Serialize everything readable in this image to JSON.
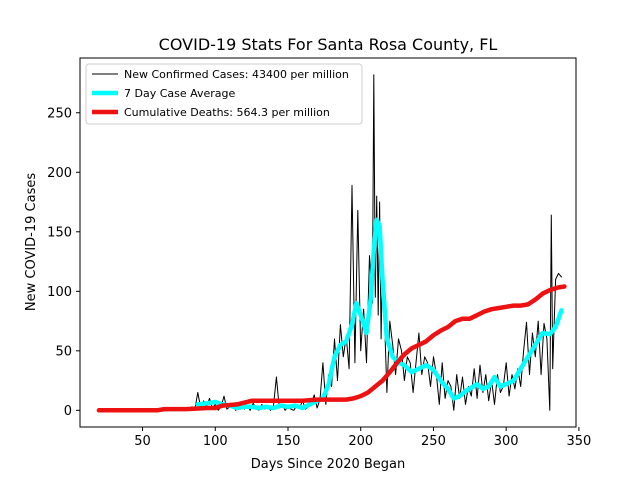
{
  "chart_data": {
    "type": "line",
    "title": "COVID-19 Stats For Santa Rosa County, FL",
    "xlabel": "Days Since 2020 Began",
    "ylabel": "New COVID-19 Cases",
    "xlim": [
      7,
      348
    ],
    "ylim": [
      -14,
      296
    ],
    "xticks": [
      50,
      100,
      150,
      200,
      250,
      300,
      350
    ],
    "yticks": [
      0,
      50,
      100,
      150,
      200,
      250
    ],
    "grid": false,
    "legend_position": "top-left",
    "series": [
      {
        "name": "New Confirmed Cases: 43400 per million",
        "color": "#000000",
        "style": "thin-line",
        "points": [
          [
            20,
            0
          ],
          [
            30,
            0
          ],
          [
            40,
            0
          ],
          [
            50,
            0
          ],
          [
            60,
            0
          ],
          [
            65,
            1
          ],
          [
            70,
            0
          ],
          [
            75,
            2
          ],
          [
            80,
            0
          ],
          [
            84,
            3
          ],
          [
            86,
            1
          ],
          [
            88,
            15
          ],
          [
            90,
            2
          ],
          [
            92,
            8
          ],
          [
            94,
            3
          ],
          [
            96,
            10
          ],
          [
            98,
            2
          ],
          [
            100,
            5
          ],
          [
            102,
            0
          ],
          [
            104,
            3
          ],
          [
            106,
            12
          ],
          [
            108,
            1
          ],
          [
            110,
            3
          ],
          [
            112,
            5
          ],
          [
            114,
            0
          ],
          [
            116,
            2
          ],
          [
            118,
            7
          ],
          [
            120,
            1
          ],
          [
            122,
            4
          ],
          [
            124,
            0
          ],
          [
            126,
            6
          ],
          [
            128,
            2
          ],
          [
            130,
            0
          ],
          [
            132,
            5
          ],
          [
            134,
            1
          ],
          [
            136,
            3
          ],
          [
            138,
            0
          ],
          [
            140,
            4
          ],
          [
            142,
            28
          ],
          [
            144,
            2
          ],
          [
            146,
            5
          ],
          [
            148,
            0
          ],
          [
            150,
            3
          ],
          [
            152,
            1
          ],
          [
            154,
            0
          ],
          [
            156,
            4
          ],
          [
            158,
            2
          ],
          [
            160,
            8
          ],
          [
            162,
            1
          ],
          [
            164,
            3
          ],
          [
            166,
            5
          ],
          [
            168,
            13
          ],
          [
            170,
            2
          ],
          [
            172,
            9
          ],
          [
            174,
            40
          ],
          [
            176,
            5
          ],
          [
            178,
            30
          ],
          [
            180,
            20
          ],
          [
            182,
            60
          ],
          [
            184,
            25
          ],
          [
            186,
            72
          ],
          [
            188,
            45
          ],
          [
            190,
            62
          ],
          [
            192,
            35
          ],
          [
            194,
            189
          ],
          [
            196,
            40
          ],
          [
            198,
            168
          ],
          [
            200,
            50
          ],
          [
            202,
            85
          ],
          [
            204,
            40
          ],
          [
            206,
            130
          ],
          [
            208,
            90
          ],
          [
            209,
            282
          ],
          [
            210,
            95
          ],
          [
            211,
            180
          ],
          [
            212,
            80
          ],
          [
            213,
            175
          ],
          [
            214,
            60
          ],
          [
            215,
            130
          ],
          [
            216,
            90
          ],
          [
            218,
            15
          ],
          [
            220,
            75
          ],
          [
            222,
            55
          ],
          [
            224,
            30
          ],
          [
            226,
            60
          ],
          [
            228,
            50
          ],
          [
            230,
            25
          ],
          [
            232,
            45
          ],
          [
            234,
            40
          ],
          [
            236,
            15
          ],
          [
            238,
            40
          ],
          [
            240,
            65
          ],
          [
            242,
            30
          ],
          [
            244,
            45
          ],
          [
            246,
            40
          ],
          [
            248,
            20
          ],
          [
            250,
            45
          ],
          [
            252,
            30
          ],
          [
            254,
            5
          ],
          [
            256,
            40
          ],
          [
            258,
            10
          ],
          [
            260,
            25
          ],
          [
            262,
            20
          ],
          [
            264,
            0
          ],
          [
            266,
            30
          ],
          [
            268,
            10
          ],
          [
            270,
            28
          ],
          [
            272,
            5
          ],
          [
            274,
            20
          ],
          [
            276,
            12
          ],
          [
            278,
            35
          ],
          [
            280,
            10
          ],
          [
            282,
            38
          ],
          [
            284,
            15
          ],
          [
            286,
            30
          ],
          [
            288,
            8
          ],
          [
            290,
            25
          ],
          [
            292,
            5
          ],
          [
            294,
            30
          ],
          [
            296,
            15
          ],
          [
            298,
            20
          ],
          [
            300,
            40
          ],
          [
            302,
            12
          ],
          [
            304,
            30
          ],
          [
            306,
            18
          ],
          [
            308,
            35
          ],
          [
            310,
            20
          ],
          [
            312,
            50
          ],
          [
            314,
            74
          ],
          [
            316,
            30
          ],
          [
            318,
            65
          ],
          [
            320,
            45
          ],
          [
            322,
            75
          ],
          [
            324,
            30
          ],
          [
            326,
            73
          ],
          [
            328,
            60
          ],
          [
            330,
            0
          ],
          [
            331,
            164
          ],
          [
            332,
            35
          ],
          [
            334,
            110
          ],
          [
            336,
            115
          ],
          [
            338,
            112
          ]
        ]
      },
      {
        "name": "7 Day Case Average",
        "color": "#00ffff",
        "style": "thick-line",
        "points": [
          [
            88,
            5
          ],
          [
            95,
            6
          ],
          [
            100,
            7
          ],
          [
            105,
            5
          ],
          [
            110,
            4
          ],
          [
            115,
            2
          ],
          [
            120,
            3
          ],
          [
            125,
            3
          ],
          [
            130,
            2
          ],
          [
            135,
            3
          ],
          [
            140,
            2
          ],
          [
            145,
            4
          ],
          [
            150,
            3
          ],
          [
            155,
            4
          ],
          [
            160,
            2
          ],
          [
            165,
            5
          ],
          [
            170,
            8
          ],
          [
            174,
            10
          ],
          [
            178,
            22
          ],
          [
            182,
            45
          ],
          [
            186,
            55
          ],
          [
            190,
            58
          ],
          [
            194,
            72
          ],
          [
            197,
            90
          ],
          [
            200,
            80
          ],
          [
            204,
            65
          ],
          [
            207,
            95
          ],
          [
            209,
            135
          ],
          [
            211,
            160
          ],
          [
            213,
            155
          ],
          [
            215,
            110
          ],
          [
            218,
            60
          ],
          [
            222,
            45
          ],
          [
            226,
            40
          ],
          [
            230,
            38
          ],
          [
            235,
            32
          ],
          [
            240,
            35
          ],
          [
            245,
            38
          ],
          [
            250,
            34
          ],
          [
            255,
            25
          ],
          [
            260,
            18
          ],
          [
            264,
            10
          ],
          [
            268,
            12
          ],
          [
            272,
            16
          ],
          [
            276,
            19
          ],
          [
            280,
            22
          ],
          [
            284,
            18
          ],
          [
            288,
            20
          ],
          [
            292,
            28
          ],
          [
            296,
            20
          ],
          [
            300,
            22
          ],
          [
            305,
            25
          ],
          [
            310,
            35
          ],
          [
            315,
            45
          ],
          [
            320,
            55
          ],
          [
            325,
            65
          ],
          [
            330,
            64
          ],
          [
            334,
            70
          ],
          [
            338,
            84
          ]
        ]
      },
      {
        "name": "Cumulative Deaths: 564.3 per million",
        "color": "#ee1111",
        "style": "thick-line",
        "points": [
          [
            20,
            0
          ],
          [
            40,
            0
          ],
          [
            60,
            0
          ],
          [
            65,
            1
          ],
          [
            80,
            1
          ],
          [
            95,
            2
          ],
          [
            100,
            2
          ],
          [
            105,
            4
          ],
          [
            115,
            5
          ],
          [
            125,
            8
          ],
          [
            135,
            8
          ],
          [
            150,
            8
          ],
          [
            160,
            8
          ],
          [
            170,
            9
          ],
          [
            180,
            9
          ],
          [
            190,
            9
          ],
          [
            195,
            10
          ],
          [
            200,
            12
          ],
          [
            205,
            15
          ],
          [
            210,
            20
          ],
          [
            215,
            25
          ],
          [
            220,
            32
          ],
          [
            225,
            40
          ],
          [
            230,
            47
          ],
          [
            235,
            52
          ],
          [
            240,
            55
          ],
          [
            245,
            58
          ],
          [
            250,
            63
          ],
          [
            255,
            67
          ],
          [
            260,
            70
          ],
          [
            265,
            75
          ],
          [
            270,
            77
          ],
          [
            275,
            77
          ],
          [
            280,
            80
          ],
          [
            285,
            83
          ],
          [
            290,
            85
          ],
          [
            295,
            86
          ],
          [
            300,
            87
          ],
          [
            305,
            88
          ],
          [
            310,
            88
          ],
          [
            315,
            89
          ],
          [
            320,
            93
          ],
          [
            325,
            98
          ],
          [
            330,
            101
          ],
          [
            335,
            103
          ],
          [
            340,
            104
          ]
        ]
      }
    ]
  }
}
